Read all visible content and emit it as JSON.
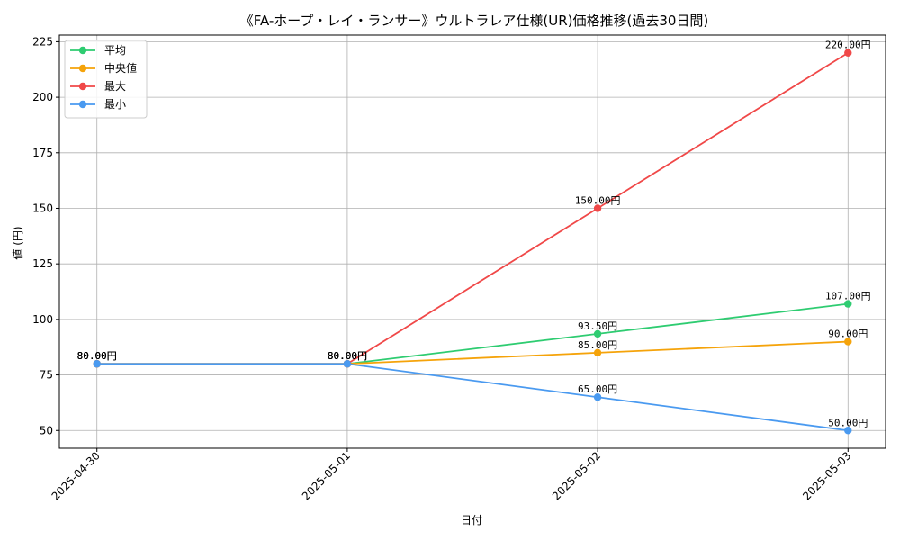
{
  "chart_data": {
    "type": "line",
    "title": "《FA-ホープ・レイ・ランサー》ウルトラレア仕様(UR)価格推移(過去30日間)",
    "xlabel": "日付",
    "ylabel": "値 (円)",
    "categories": [
      "2025-04-30",
      "2025-05-01",
      "2025-05-02",
      "2025-05-03"
    ],
    "ylim": [
      42,
      228
    ],
    "yticks": [
      50,
      75,
      100,
      125,
      150,
      175,
      200,
      225
    ],
    "grid": true,
    "legend_position": "top-left",
    "value_suffix": "円",
    "series": [
      {
        "name": "平均",
        "color": "#2ecc71",
        "values": [
          80.0,
          80.0,
          93.5,
          107.0
        ],
        "labels": [
          "80.00円",
          "80.00円",
          "93.50円",
          "107.00円"
        ]
      },
      {
        "name": "中央値",
        "color": "#f5a30a",
        "values": [
          80.0,
          80.0,
          85.0,
          90.0
        ],
        "labels": [
          "80.00円",
          "80.00円",
          "85.00円",
          "90.00円"
        ]
      },
      {
        "name": "最大",
        "color": "#f04848",
        "values": [
          80.0,
          80.0,
          150.0,
          220.0
        ],
        "labels": [
          "80.00円",
          "80.00円",
          "150.00円",
          "220.00円"
        ]
      },
      {
        "name": "最小",
        "color": "#4a9af0",
        "values": [
          80.0,
          80.0,
          65.0,
          50.0
        ],
        "labels": [
          "80.00円",
          "80.00円",
          "65.00円",
          "50.00円"
        ]
      }
    ]
  }
}
